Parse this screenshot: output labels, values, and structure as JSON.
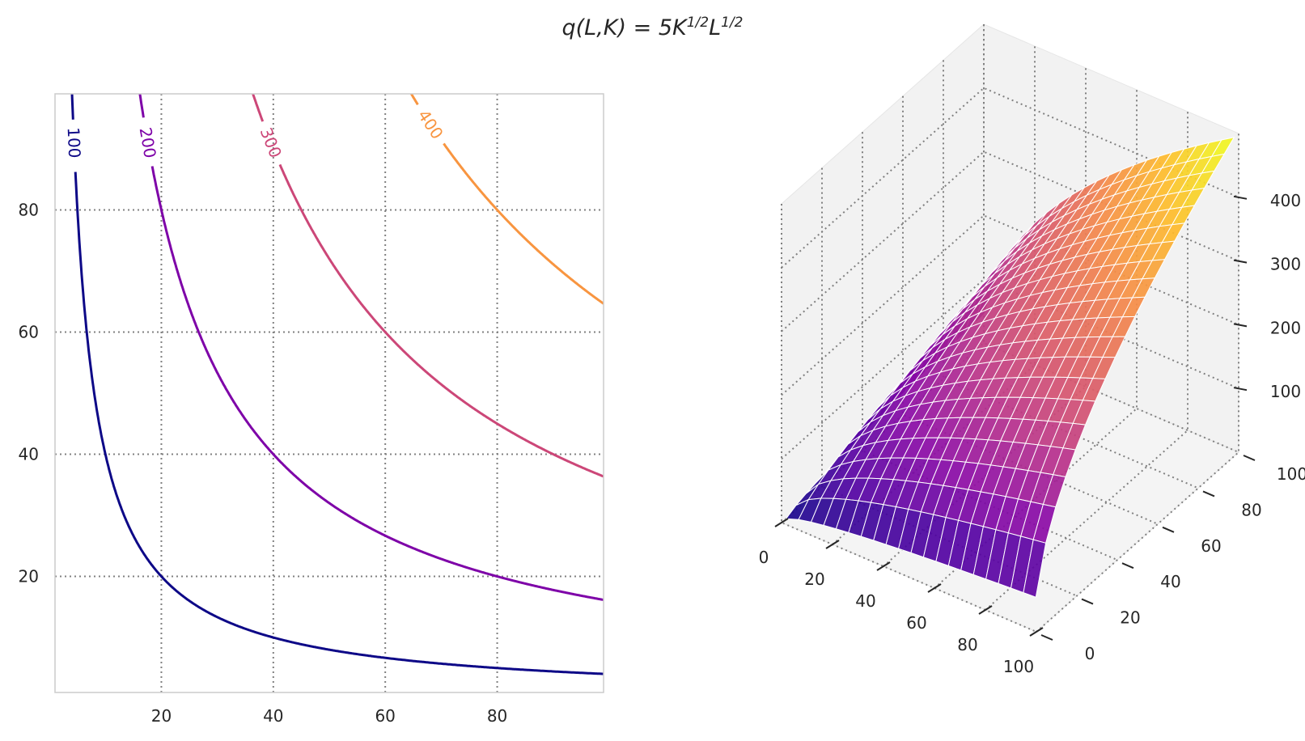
{
  "figure": {
    "title": {
      "text": "q(L,K) = 5K",
      "exp1": "1/2",
      "mid": "L",
      "exp2": "1/2"
    }
  },
  "chart_data": [
    {
      "type": "contour",
      "function": "q = 5 * K^0.5 * L^0.5",
      "x_ticks": [
        20,
        40,
        60,
        80
      ],
      "y_ticks": [
        20,
        40,
        60,
        80
      ],
      "xlim": [
        1,
        99
      ],
      "ylim": [
        1,
        99
      ],
      "grid": true,
      "levels": [
        {
          "value": 100,
          "label": "100",
          "color": "#0d0887"
        },
        {
          "value": 200,
          "label": "200",
          "color": "#7e03a8"
        },
        {
          "value": 300,
          "label": "300",
          "color": "#cc4778"
        },
        {
          "value": 400,
          "label": "400",
          "color": "#f89540"
        }
      ]
    },
    {
      "type": "surface3d",
      "function": "q = 5 * K^0.5 * L^0.5",
      "colormap": "plasma",
      "x_ticks": [
        "0",
        "20",
        "40",
        "60",
        "80",
        "100"
      ],
      "y_ticks": [
        "0",
        "20",
        "40",
        "60",
        "80",
        "100"
      ],
      "z_ticks": [
        "100",
        "200",
        "300",
        "400"
      ],
      "xlim": [
        0,
        100
      ],
      "ylim": [
        0,
        100
      ],
      "zlim": [
        0,
        500
      ],
      "grid": true
    }
  ]
}
